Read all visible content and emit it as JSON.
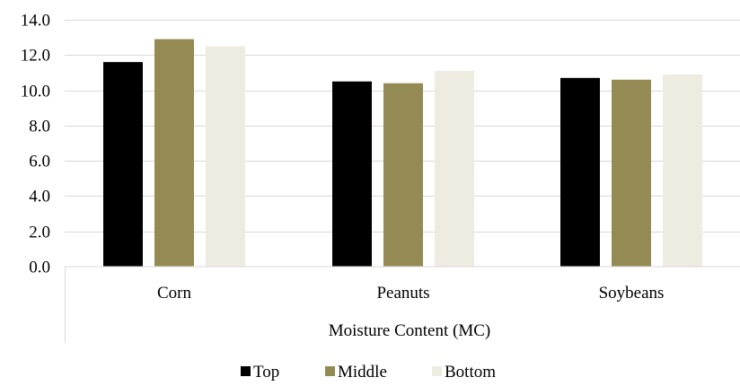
{
  "chart_data": {
    "type": "bar",
    "title": "",
    "xlabel": "Moisture Content (MC)",
    "ylabel": "",
    "categories": [
      "Corn",
      "Peanuts",
      "Soybeans"
    ],
    "series": [
      {
        "name": "Top",
        "values": [
          11.6,
          10.5,
          10.7
        ],
        "color": "#000000"
      },
      {
        "name": "Middle",
        "values": [
          12.9,
          10.4,
          10.6
        ],
        "color": "#948b54"
      },
      {
        "name": "Bottom",
        "values": [
          12.5,
          11.1,
          10.9
        ],
        "color": "#eeece1"
      }
    ],
    "ylim": [
      0,
      14
    ],
    "yticks": [
      "0.0",
      "2.0",
      "4.0",
      "6.0",
      "8.0",
      "10.0",
      "12.0",
      "14.0"
    ],
    "grid": true,
    "legend_position": "bottom"
  }
}
